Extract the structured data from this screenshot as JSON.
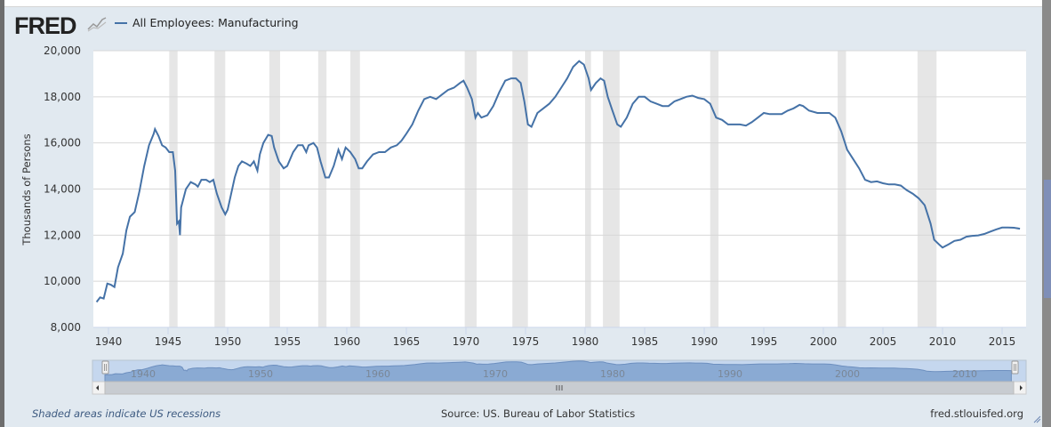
{
  "header": {
    "logo_text": "FRED",
    "legend_label": "All Employees: Manufacturing"
  },
  "footer": {
    "note": "Shaded areas indicate US recessions",
    "source": "Source: US. Bureau of Labor Statistics",
    "site": "fred.stlouisfed.org"
  },
  "colors": {
    "series": "#4572a7",
    "recession": "#e6e6e6",
    "navigator_fill": "#8aaad3"
  },
  "chart_data": {
    "type": "line",
    "title": "",
    "xlabel": "",
    "ylabel": "Thousands of Persons",
    "xlim": [
      1939,
      2016.7
    ],
    "ylim": [
      8000,
      20000
    ],
    "x_ticks": [
      "1940",
      "1945",
      "1950",
      "1955",
      "1960",
      "1965",
      "1970",
      "1975",
      "1980",
      "1985",
      "1990",
      "1995",
      "2000",
      "2005",
      "2010",
      "2015"
    ],
    "y_ticks": [
      "8,000",
      "10,000",
      "12,000",
      "14,000",
      "16,000",
      "18,000",
      "20,000"
    ],
    "navigator_ticks": [
      "1940",
      "1950",
      "1960",
      "1970",
      "1980",
      "1990",
      "2000",
      "2010"
    ],
    "grid": true,
    "legend_position": "top-left",
    "recessions": [
      [
        1945.1,
        1945.8
      ],
      [
        1948.9,
        1949.8
      ],
      [
        1953.5,
        1954.4
      ],
      [
        1957.6,
        1958.3
      ],
      [
        1960.3,
        1961.1
      ],
      [
        1969.9,
        1970.9
      ],
      [
        1973.9,
        1975.2
      ],
      [
        1980.0,
        1980.5
      ],
      [
        1981.5,
        1982.9
      ],
      [
        1990.5,
        1991.2
      ],
      [
        2001.2,
        2001.9
      ],
      [
        2007.9,
        2009.5
      ]
    ],
    "series": [
      {
        "name": "All Employees: Manufacturing",
        "points": [
          [
            1939.0,
            9100
          ],
          [
            1939.3,
            9300
          ],
          [
            1939.6,
            9250
          ],
          [
            1939.9,
            9900
          ],
          [
            1940.2,
            9850
          ],
          [
            1940.5,
            9750
          ],
          [
            1940.8,
            10600
          ],
          [
            1941.2,
            11200
          ],
          [
            1941.5,
            12200
          ],
          [
            1941.8,
            12800
          ],
          [
            1942.2,
            13000
          ],
          [
            1942.6,
            13900
          ],
          [
            1943.0,
            15000
          ],
          [
            1943.4,
            15900
          ],
          [
            1943.8,
            16400
          ],
          [
            1943.9,
            16600
          ],
          [
            1944.2,
            16300
          ],
          [
            1944.5,
            15900
          ],
          [
            1944.8,
            15800
          ],
          [
            1945.1,
            15600
          ],
          [
            1945.4,
            15600
          ],
          [
            1945.6,
            14800
          ],
          [
            1945.75,
            12500
          ],
          [
            1945.9,
            12600
          ],
          [
            1946.0,
            12000
          ],
          [
            1946.1,
            13200
          ],
          [
            1946.5,
            14000
          ],
          [
            1946.9,
            14300
          ],
          [
            1947.3,
            14200
          ],
          [
            1947.5,
            14100
          ],
          [
            1947.8,
            14400
          ],
          [
            1948.2,
            14400
          ],
          [
            1948.5,
            14300
          ],
          [
            1948.8,
            14400
          ],
          [
            1949.1,
            13800
          ],
          [
            1949.5,
            13200
          ],
          [
            1949.8,
            12900
          ],
          [
            1950.0,
            13100
          ],
          [
            1950.3,
            13800
          ],
          [
            1950.6,
            14500
          ],
          [
            1950.9,
            15000
          ],
          [
            1951.2,
            15200
          ],
          [
            1951.6,
            15100
          ],
          [
            1951.9,
            15000
          ],
          [
            1952.2,
            15200
          ],
          [
            1952.5,
            14800
          ],
          [
            1952.7,
            15500
          ],
          [
            1953.0,
            16000
          ],
          [
            1953.4,
            16350
          ],
          [
            1953.7,
            16300
          ],
          [
            1953.9,
            15800
          ],
          [
            1954.3,
            15200
          ],
          [
            1954.7,
            14900
          ],
          [
            1955.0,
            15000
          ],
          [
            1955.5,
            15600
          ],
          [
            1955.9,
            15900
          ],
          [
            1956.3,
            15900
          ],
          [
            1956.6,
            15600
          ],
          [
            1956.8,
            15900
          ],
          [
            1957.2,
            16000
          ],
          [
            1957.5,
            15800
          ],
          [
            1957.8,
            15200
          ],
          [
            1958.2,
            14500
          ],
          [
            1958.5,
            14500
          ],
          [
            1958.9,
            15000
          ],
          [
            1959.3,
            15700
          ],
          [
            1959.6,
            15300
          ],
          [
            1959.9,
            15800
          ],
          [
            1960.3,
            15600
          ],
          [
            1960.7,
            15300
          ],
          [
            1961.0,
            14900
          ],
          [
            1961.3,
            14900
          ],
          [
            1961.7,
            15200
          ],
          [
            1962.2,
            15500
          ],
          [
            1962.7,
            15600
          ],
          [
            1963.2,
            15600
          ],
          [
            1963.7,
            15800
          ],
          [
            1964.2,
            15900
          ],
          [
            1964.6,
            16100
          ],
          [
            1965.0,
            16400
          ],
          [
            1965.5,
            16800
          ],
          [
            1966.0,
            17400
          ],
          [
            1966.5,
            17900
          ],
          [
            1967.0,
            18000
          ],
          [
            1967.5,
            17900
          ],
          [
            1968.0,
            18100
          ],
          [
            1968.5,
            18300
          ],
          [
            1969.0,
            18400
          ],
          [
            1969.5,
            18600
          ],
          [
            1969.8,
            18700
          ],
          [
            1970.1,
            18400
          ],
          [
            1970.5,
            17900
          ],
          [
            1970.8,
            17100
          ],
          [
            1971.0,
            17300
          ],
          [
            1971.3,
            17100
          ],
          [
            1971.8,
            17200
          ],
          [
            1972.3,
            17600
          ],
          [
            1972.8,
            18200
          ],
          [
            1973.3,
            18700
          ],
          [
            1973.8,
            18800
          ],
          [
            1974.2,
            18800
          ],
          [
            1974.6,
            18600
          ],
          [
            1974.9,
            17800
          ],
          [
            1975.2,
            16800
          ],
          [
            1975.5,
            16700
          ],
          [
            1976.0,
            17300
          ],
          [
            1976.5,
            17500
          ],
          [
            1977.0,
            17700
          ],
          [
            1977.5,
            18000
          ],
          [
            1978.0,
            18400
          ],
          [
            1978.5,
            18800
          ],
          [
            1979.0,
            19300
          ],
          [
            1979.5,
            19550
          ],
          [
            1979.9,
            19400
          ],
          [
            1980.3,
            18800
          ],
          [
            1980.5,
            18300
          ],
          [
            1980.9,
            18600
          ],
          [
            1981.3,
            18800
          ],
          [
            1981.6,
            18700
          ],
          [
            1981.9,
            18000
          ],
          [
            1982.3,
            17400
          ],
          [
            1982.7,
            16800
          ],
          [
            1983.0,
            16700
          ],
          [
            1983.5,
            17100
          ],
          [
            1984.0,
            17700
          ],
          [
            1984.5,
            18000
          ],
          [
            1985.0,
            18000
          ],
          [
            1985.5,
            17800
          ],
          [
            1986.0,
            17700
          ],
          [
            1986.5,
            17600
          ],
          [
            1987.0,
            17600
          ],
          [
            1987.5,
            17800
          ],
          [
            1988.0,
            17900
          ],
          [
            1988.5,
            18000
          ],
          [
            1989.0,
            18050
          ],
          [
            1989.5,
            17950
          ],
          [
            1990.0,
            17900
          ],
          [
            1990.5,
            17700
          ],
          [
            1991.0,
            17100
          ],
          [
            1991.5,
            17000
          ],
          [
            1992.0,
            16800
          ],
          [
            1992.5,
            16800
          ],
          [
            1993.0,
            16800
          ],
          [
            1993.5,
            16750
          ],
          [
            1994.0,
            16900
          ],
          [
            1994.5,
            17100
          ],
          [
            1995.0,
            17300
          ],
          [
            1995.5,
            17250
          ],
          [
            1996.0,
            17250
          ],
          [
            1996.5,
            17250
          ],
          [
            1997.0,
            17400
          ],
          [
            1997.5,
            17500
          ],
          [
            1998.0,
            17650
          ],
          [
            1998.3,
            17600
          ],
          [
            1998.8,
            17400
          ],
          [
            1999.5,
            17300
          ],
          [
            2000.0,
            17300
          ],
          [
            2000.5,
            17300
          ],
          [
            2001.0,
            17100
          ],
          [
            2001.5,
            16500
          ],
          [
            2002.0,
            15700
          ],
          [
            2002.5,
            15300
          ],
          [
            2003.0,
            14900
          ],
          [
            2003.5,
            14400
          ],
          [
            2004.0,
            14300
          ],
          [
            2004.5,
            14330
          ],
          [
            2005.0,
            14250
          ],
          [
            2005.5,
            14200
          ],
          [
            2006.0,
            14200
          ],
          [
            2006.5,
            14150
          ],
          [
            2007.0,
            13950
          ],
          [
            2007.5,
            13800
          ],
          [
            2008.0,
            13600
          ],
          [
            2008.5,
            13300
          ],
          [
            2009.0,
            12500
          ],
          [
            2009.3,
            11800
          ],
          [
            2009.7,
            11600
          ],
          [
            2010.0,
            11460
          ],
          [
            2010.5,
            11600
          ],
          [
            2011.0,
            11750
          ],
          [
            2011.5,
            11800
          ],
          [
            2012.0,
            11930
          ],
          [
            2012.5,
            11970
          ],
          [
            2013.0,
            11990
          ],
          [
            2013.5,
            12050
          ],
          [
            2014.0,
            12150
          ],
          [
            2014.5,
            12250
          ],
          [
            2015.0,
            12330
          ],
          [
            2015.5,
            12330
          ],
          [
            2016.0,
            12320
          ],
          [
            2016.5,
            12280
          ]
        ]
      }
    ]
  }
}
